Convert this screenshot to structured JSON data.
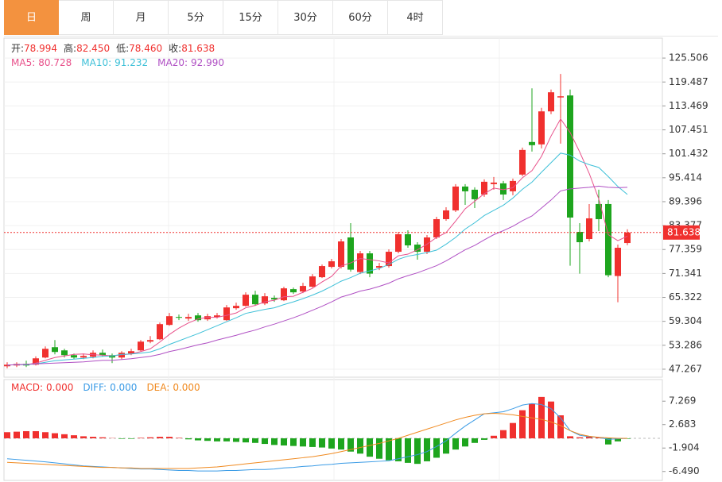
{
  "tabs": [
    "日",
    "周",
    "月",
    "5分",
    "15分",
    "30分",
    "60分",
    "4时"
  ],
  "selected_tab": 0,
  "chart_data": [
    {
      "type": "candlestick",
      "up_color": "#f0302e",
      "down_color": "#1ea51e",
      "info": [
        {
          "name": "开:",
          "value": 78.994,
          "label": "78.994"
        },
        {
          "name": "高:",
          "value": 82.45,
          "label": "82.450"
        },
        {
          "name": "低:",
          "value": 78.46,
          "label": "78.460"
        },
        {
          "name": "收:",
          "value": 81.638,
          "label": "81.638"
        }
      ],
      "open": [
        48,
        48.2,
        48.6,
        48.4,
        50.2,
        52.8,
        52,
        50.8,
        50.2,
        50.4,
        51.4,
        50.8,
        50.2,
        51.2,
        52,
        54.2,
        54.8,
        58.4,
        60.4,
        60,
        60.8,
        59.8,
        60.4,
        59.6,
        62.6,
        63.2,
        66,
        63.8,
        65.2,
        64.6,
        67.4,
        66.8,
        68,
        70.4,
        73,
        73,
        80.4,
        71.7,
        76.4,
        72.8,
        73.2,
        76.8,
        81.2,
        78.6,
        76.8,
        80.4,
        85,
        87.2,
        93.2,
        92.4,
        91.2,
        93.8,
        94,
        92,
        96.2,
        104.4,
        103.8,
        112.1,
        115.6,
        116.1,
        81.8,
        80,
        88.8,
        88.8,
        70.7,
        78.994
      ],
      "high": [
        49,
        49,
        49.4,
        50.5,
        53,
        54.6,
        52.4,
        51.2,
        51.2,
        52,
        52.2,
        51.2,
        51.8,
        52.4,
        54.6,
        55.6,
        59,
        61.4,
        61,
        61.2,
        61.4,
        61.2,
        61.4,
        63.4,
        64,
        66.6,
        67,
        66.4,
        65.8,
        68,
        67.8,
        69,
        71.2,
        73.6,
        75,
        80,
        84,
        77,
        77,
        74,
        77.4,
        81.8,
        82.2,
        79.2,
        81,
        85.6,
        88,
        93.8,
        93.8,
        93,
        95,
        95.6,
        94.6,
        95.2,
        103,
        117.9,
        113,
        117.6,
        121.5,
        117.6,
        84,
        88.8,
        92.4,
        89.8,
        78.6,
        82.45
      ],
      "low": [
        47.5,
        47.8,
        47.8,
        48.2,
        50,
        51,
        50.2,
        49.8,
        49.8,
        50,
        50.4,
        48.8,
        49.8,
        50.8,
        51.8,
        53.8,
        54.6,
        58.2,
        59.6,
        59.4,
        59.2,
        59.4,
        60,
        59.4,
        62.2,
        63,
        63.2,
        63.4,
        64.2,
        64.4,
        66.2,
        66.4,
        67.8,
        70.2,
        72.6,
        72.6,
        71.8,
        71.2,
        70.4,
        72.2,
        72.8,
        76.4,
        77.8,
        74.8,
        76.2,
        80,
        84.6,
        86.8,
        88.6,
        87.8,
        90.6,
        92.4,
        89.8,
        91,
        95.8,
        102,
        102.8,
        111.4,
        104,
        73.3,
        71.3,
        79.4,
        82,
        70.4,
        64.1,
        78.46
      ],
      "close": [
        48.4,
        48.6,
        48.2,
        50,
        52.4,
        51.6,
        50.8,
        50.2,
        50.6,
        51.4,
        50.8,
        50.2,
        51.4,
        51.8,
        54.2,
        54.6,
        58.6,
        60.6,
        60.2,
        60.4,
        59.6,
        60.6,
        60.8,
        62.8,
        63.2,
        66,
        63.6,
        65.6,
        64.8,
        67.6,
        66.6,
        68.2,
        70.6,
        73.2,
        74.4,
        79.4,
        72.3,
        76.4,
        71.3,
        73.2,
        76.8,
        81.2,
        78.4,
        76.8,
        80.4,
        85,
        87.2,
        93.2,
        92,
        90,
        94.4,
        94.2,
        91.2,
        94.6,
        102.4,
        103.6,
        112.1,
        116.9,
        115.9,
        85.4,
        79.2,
        85.2,
        85,
        70.9,
        77.8,
        81.638
      ],
      "series": [
        {
          "name": "MA5:",
          "color": "#e8508a",
          "current": {
            "value": 80.728,
            "label": "80.728"
          },
          "values": [
            48.3,
            48.4,
            48.4,
            48.8,
            49.5,
            50.2,
            50.6,
            51.0,
            51.1,
            50.9,
            50.8,
            50.6,
            50.9,
            51.1,
            51.7,
            52.4,
            54.1,
            56.0,
            57.6,
            58.9,
            59.9,
            60.3,
            60.3,
            60.8,
            61.4,
            62.7,
            63.3,
            64.2,
            64.6,
            65.5,
            65.6,
            66.6,
            67.6,
            69.2,
            70.6,
            73.2,
            74.0,
            75.1,
            74.8,
            74.5,
            74.0,
            75.8,
            76.2,
            77.3,
            78.7,
            80.4,
            81.6,
            84.5,
            87.6,
            89.5,
            91.4,
            92.8,
            92.4,
            92.9,
            95.4,
            97.2,
            100.8,
            105.9,
            110.2,
            106.8,
            101.9,
            96.5,
            90.1,
            81.1,
            79.6,
            80.7
          ]
        },
        {
          "name": "MA10:",
          "color": "#3ec0d8",
          "current": {
            "value": 91.232,
            "label": "91.232"
          },
          "values": [
            48.3,
            48.4,
            48.4,
            48.6,
            49.0,
            49.4,
            49.6,
            49.8,
            50.0,
            50.2,
            50.5,
            50.6,
            51.0,
            51.1,
            51.3,
            51.6,
            52.4,
            53.5,
            54.4,
            55.3,
            56.2,
            57.2,
            58.2,
            59.2,
            60.2,
            61.3,
            61.8,
            62.3,
            62.7,
            63.5,
            64.2,
            65.0,
            65.9,
            66.9,
            68.1,
            69.4,
            70.3,
            71.4,
            72.0,
            72.6,
            73.6,
            74.9,
            75.7,
            76.1,
            76.6,
            77.2,
            78.7,
            80.4,
            82.5,
            84.1,
            85.9,
            87.2,
            88.5,
            90.3,
            92.5,
            94.3,
            96.8,
            99.2,
            101.6,
            101.1,
            99.6,
            98.7,
            98.0,
            95.7,
            93.2,
            91.2
          ]
        },
        {
          "name": "MA20:",
          "color": "#b050c4",
          "current": {
            "value": 92.99,
            "label": "92.990"
          },
          "values": [
            48.3,
            48.4,
            48.5,
            48.6,
            48.7,
            48.8,
            48.9,
            49.0,
            49.1,
            49.3,
            49.5,
            49.5,
            49.7,
            49.9,
            50.2,
            50.5,
            51.0,
            51.7,
            52.2,
            52.8,
            53.4,
            53.9,
            54.6,
            55.2,
            55.8,
            56.5,
            57.1,
            57.9,
            58.6,
            59.4,
            60.2,
            61.1,
            62.1,
            63.1,
            64.2,
            65.4,
            66.1,
            66.9,
            67.4,
            68.1,
            68.9,
            70.0,
            70.8,
            71.5,
            72.4,
            73.3,
            74.5,
            75.9,
            77.3,
            78.4,
            79.8,
            81.1,
            82.1,
            83.2,
            84.6,
            85.8,
            87.8,
            89.8,
            92.1,
            92.6,
            92.8,
            93.0,
            93.3,
            93.0,
            92.9,
            93.0
          ]
        }
      ],
      "last_price": 81.638,
      "last_price_color": "#f0302e",
      "ylim": [
        45.26,
        130.52
      ],
      "yticks": [
        47.267,
        53.286,
        59.304,
        65.322,
        71.341,
        77.359,
        83.377,
        89.396,
        95.414,
        101.432,
        107.451,
        113.469,
        119.487,
        125.506
      ],
      "grid": true
    },
    {
      "type": "macd",
      "up_color": "#f0302e",
      "down_color": "#1ea51e",
      "series": [
        {
          "name": "MACD:",
          "color": "#f0302e",
          "kind": "histogram",
          "current": {
            "value": 0,
            "label": "0.000"
          },
          "values": [
            1.2,
            1.3,
            1.4,
            1.4,
            1.2,
            1.0,
            0.8,
            0.6,
            0.4,
            0.3,
            0.2,
            0.05,
            -0.1,
            -0.1,
            0.1,
            0.2,
            0.3,
            0.3,
            0.1,
            -0.2,
            -0.4,
            -0.5,
            -0.6,
            -0.6,
            -0.7,
            -0.8,
            -0.9,
            -1.1,
            -1.3,
            -1.4,
            -1.5,
            -1.6,
            -1.7,
            -1.8,
            -2.0,
            -2.2,
            -2.6,
            -3.0,
            -3.6,
            -4.0,
            -4.3,
            -4.5,
            -4.8,
            -5.0,
            -4.5,
            -3.8,
            -3.0,
            -2.2,
            -1.6,
            -0.9,
            -0.3,
            0.5,
            1.6,
            3.0,
            5.5,
            6.8,
            8.1,
            7.2,
            4.5,
            0.4,
            0.2,
            0.3,
            0.2,
            -1.2,
            -0.6,
            -0.1
          ]
        },
        {
          "name": "DIFF:",
          "color": "#3a9be6",
          "kind": "line",
          "current": {
            "value": 0,
            "label": "0.000"
          },
          "values": [
            -4.0,
            -4.15,
            -4.3,
            -4.45,
            -4.6,
            -4.8,
            -5.0,
            -5.2,
            -5.4,
            -5.5,
            -5.6,
            -5.7,
            -5.8,
            -5.9,
            -6.0,
            -6.0,
            -6.1,
            -6.2,
            -6.3,
            -6.3,
            -6.4,
            -6.4,
            -6.4,
            -6.3,
            -6.3,
            -6.2,
            -6.1,
            -6.1,
            -6.0,
            -5.8,
            -5.7,
            -5.5,
            -5.4,
            -5.2,
            -5.1,
            -4.9,
            -4.8,
            -4.7,
            -4.6,
            -4.5,
            -4.4,
            -4.0,
            -3.6,
            -3.2,
            -2.6,
            -1.6,
            -0.5,
            1.0,
            2.4,
            3.6,
            4.8,
            5.0,
            5.2,
            5.8,
            6.5,
            6.8,
            6.6,
            5.8,
            4.0,
            1.5,
            0.6,
            0.3,
            0.2,
            -0.2,
            -0.1,
            0.0
          ]
        },
        {
          "name": "DEA:",
          "color": "#f08a20",
          "kind": "line",
          "current": {
            "value": 0,
            "label": "0.000"
          },
          "values": [
            -4.7,
            -4.8,
            -4.9,
            -5.0,
            -5.1,
            -5.2,
            -5.3,
            -5.4,
            -5.5,
            -5.6,
            -5.7,
            -5.7,
            -5.8,
            -5.8,
            -5.9,
            -5.9,
            -5.9,
            -5.9,
            -5.9,
            -5.9,
            -5.8,
            -5.7,
            -5.6,
            -5.4,
            -5.2,
            -5.0,
            -4.8,
            -4.6,
            -4.4,
            -4.2,
            -4.0,
            -3.8,
            -3.6,
            -3.3,
            -3.0,
            -2.6,
            -2.2,
            -1.8,
            -1.4,
            -1.0,
            -0.5,
            0.0,
            0.6,
            1.2,
            1.8,
            2.4,
            3.0,
            3.6,
            4.1,
            4.5,
            4.8,
            4.9,
            4.8,
            4.6,
            4.3,
            4.0,
            3.7,
            3.2,
            2.5,
            1.5,
            0.8,
            0.4,
            0.2,
            0.1,
            0.0,
            0.0
          ]
        }
      ],
      "ylim": [
        -8.24,
        11.5
      ],
      "yticks": [
        {
          "value": -6.49,
          "label": "-6.490"
        },
        -1.904,
        2.683,
        7.269
      ]
    }
  ]
}
